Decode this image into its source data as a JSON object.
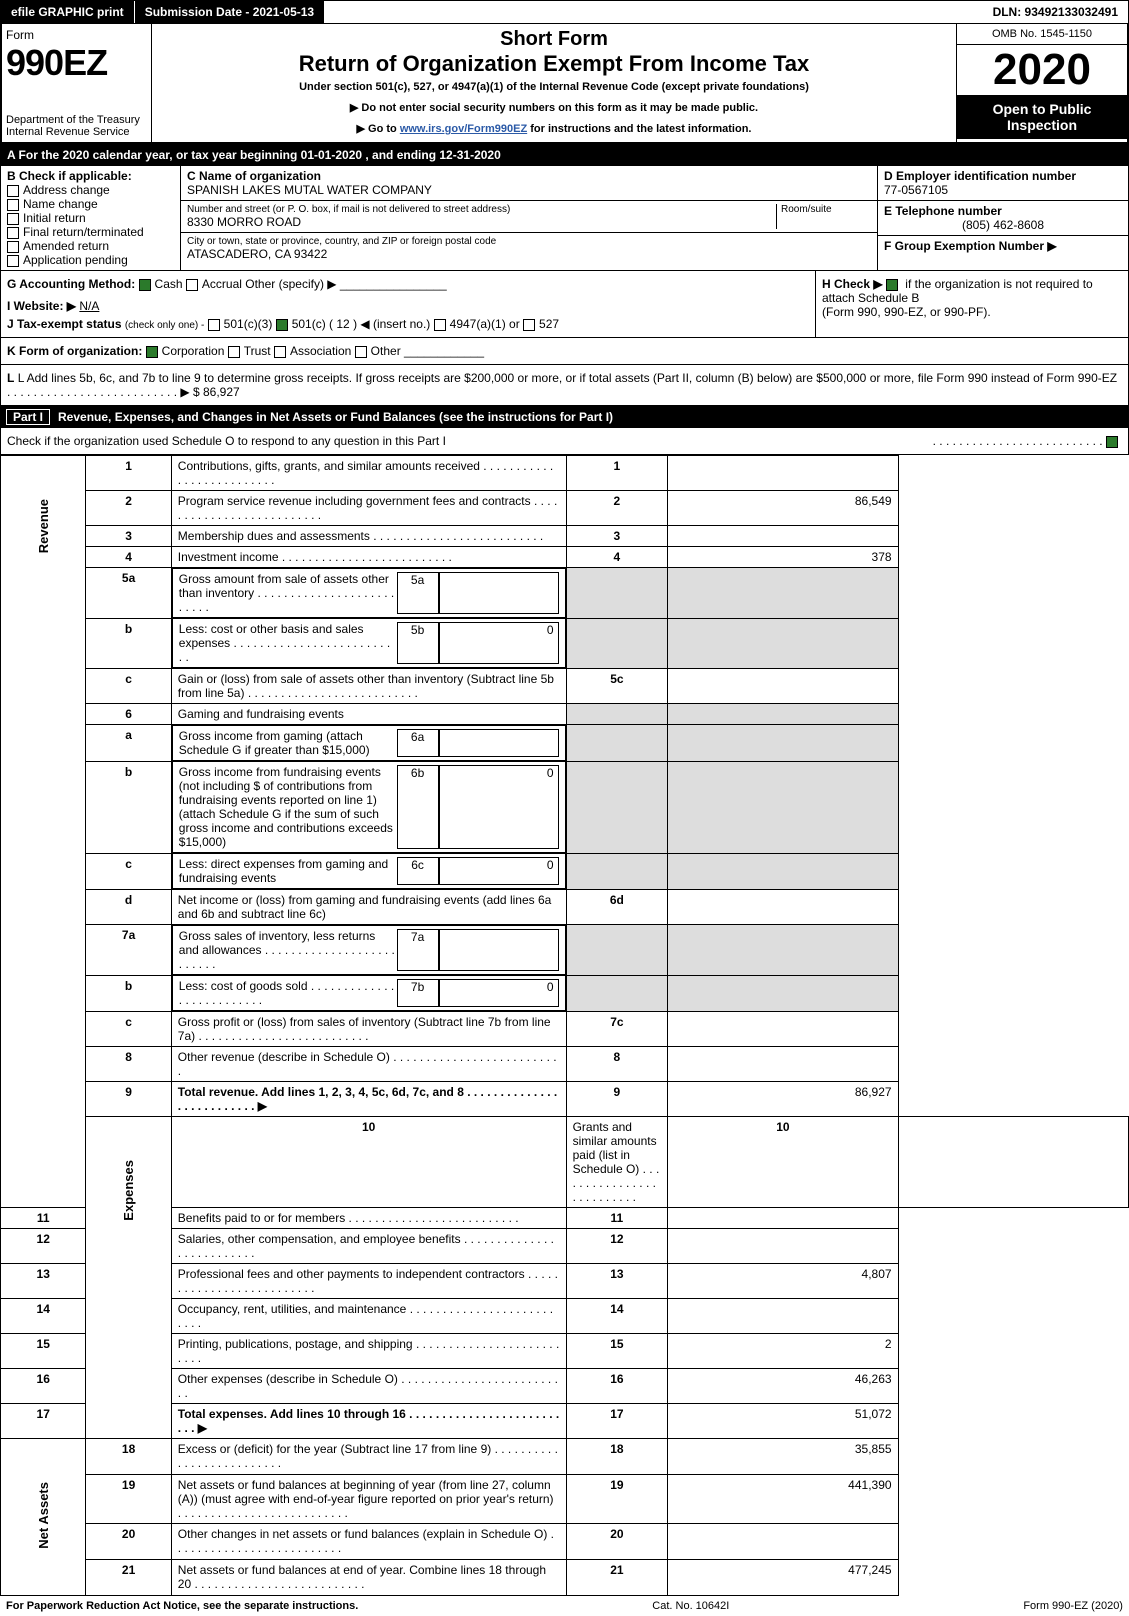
{
  "top": {
    "efile": "efile GRAPHIC print",
    "sub_label": "Submission Date - 2021-05-13",
    "dln": "DLN: 93492133032491"
  },
  "header": {
    "form_word": "Form",
    "form_num": "990EZ",
    "dept": "Department of the Treasury",
    "irs": "Internal Revenue Service",
    "short": "Short Form",
    "title": "Return of Organization Exempt From Income Tax",
    "sub": "Under section 501(c), 527, or 4947(a)(1) of the Internal Revenue Code (except private foundations)",
    "note1": "▶ Do not enter social security numbers on this form as it may be made public.",
    "note2_pre": "▶ Go to ",
    "note2_link": "www.irs.gov/Form990EZ",
    "note2_post": " for instructions and the latest information.",
    "omb": "OMB No. 1545-1150",
    "year": "2020",
    "open": "Open to Public",
    "insp": "Inspection"
  },
  "a_line": "A For the 2020 calendar year, or tax year beginning 01-01-2020 , and ending 12-31-2020",
  "b": {
    "title": "B Check if applicable:",
    "items": [
      "Address change",
      "Name change",
      "Initial return",
      "Final return/terminated",
      "Amended return",
      "Application pending"
    ]
  },
  "c": {
    "label": "C Name of organization",
    "name": "SPANISH LAKES MUTAL WATER COMPANY",
    "street_label": "Number and street (or P. O. box, if mail is not delivered to street address)",
    "room_label": "Room/suite",
    "street": "8330 MORRO ROAD",
    "city_label": "City or town, state or province, country, and ZIP or foreign postal code",
    "city": "ATASCADERO, CA  93422"
  },
  "d": {
    "label": "D Employer identification number",
    "val": "77-0567105"
  },
  "e": {
    "label": "E Telephone number",
    "val": "(805) 462-8608"
  },
  "f": {
    "label": "F Group Exemption Number  ▶",
    "val": ""
  },
  "g": {
    "label": "G Accounting Method:",
    "cash": "Cash",
    "accrual": "Accrual",
    "other": "Other (specify) ▶"
  },
  "h": {
    "pre": "H  Check ▶",
    "post": " if the organization is not required to attach Schedule B",
    "sub": "(Form 990, 990-EZ, or 990-PF)."
  },
  "i": {
    "label": "I Website: ▶",
    "val": "N/A"
  },
  "j": {
    "label": "J Tax-exempt status",
    "sub": "(check only one) -",
    "o1": "501(c)(3)",
    "o2": "501(c) ( 12 ) ◀ (insert no.)",
    "o3": "4947(a)(1) or",
    "o4": "527"
  },
  "k": {
    "label": "K Form of organization:",
    "o1": "Corporation",
    "o2": "Trust",
    "o3": "Association",
    "o4": "Other"
  },
  "l": {
    "text": "L Add lines 5b, 6c, and 7b to line 9 to determine gross receipts. If gross receipts are $200,000 or more, or if total assets (Part II, column (B) below) are $500,000 or more, file Form 990 instead of Form 990-EZ",
    "arrow": "▶ $",
    "val": "86,927"
  },
  "part1": {
    "title": "Revenue, Expenses, and Changes in Net Assets or Fund Balances (see the instructions for Part I)",
    "check_line": "Check if the organization used Schedule O to respond to any question in this Part I"
  },
  "sides": {
    "rev": "Revenue",
    "exp": "Expenses",
    "net": "Net Assets"
  },
  "rows": {
    "1": {
      "n": "1",
      "t": "Contributions, gifts, grants, and similar amounts received",
      "r": "1",
      "v": ""
    },
    "2": {
      "n": "2",
      "t": "Program service revenue including government fees and contracts",
      "r": "2",
      "v": "86,549"
    },
    "3": {
      "n": "3",
      "t": "Membership dues and assessments",
      "r": "3",
      "v": ""
    },
    "4": {
      "n": "4",
      "t": "Investment income",
      "r": "4",
      "v": "378"
    },
    "5a": {
      "n": "5a",
      "t": "Gross amount from sale of assets other than inventory",
      "sn": "5a",
      "sv": ""
    },
    "5b": {
      "n": "b",
      "t": "Less: cost or other basis and sales expenses",
      "sn": "5b",
      "sv": "0"
    },
    "5c": {
      "n": "c",
      "t": "Gain or (loss) from sale of assets other than inventory (Subtract line 5b from line 5a)",
      "r": "5c",
      "v": ""
    },
    "6": {
      "n": "6",
      "t": "Gaming and fundraising events"
    },
    "6a": {
      "n": "a",
      "t": "Gross income from gaming (attach Schedule G if greater than $15,000)",
      "sn": "6a",
      "sv": ""
    },
    "6b": {
      "n": "b",
      "t": "Gross income from fundraising events (not including $               of contributions from fundraising events reported on line 1) (attach Schedule G if the sum of such gross income and contributions exceeds $15,000)",
      "sn": "6b",
      "sv": "0"
    },
    "6c": {
      "n": "c",
      "t": "Less: direct expenses from gaming and fundraising events",
      "sn": "6c",
      "sv": "0"
    },
    "6d": {
      "n": "d",
      "t": "Net income or (loss) from gaming and fundraising events (add lines 6a and 6b and subtract line 6c)",
      "r": "6d",
      "v": ""
    },
    "7a": {
      "n": "7a",
      "t": "Gross sales of inventory, less returns and allowances",
      "sn": "7a",
      "sv": ""
    },
    "7b": {
      "n": "b",
      "t": "Less: cost of goods sold",
      "sn": "7b",
      "sv": "0"
    },
    "7c": {
      "n": "c",
      "t": "Gross profit or (loss) from sales of inventory (Subtract line 7b from line 7a)",
      "r": "7c",
      "v": ""
    },
    "8": {
      "n": "8",
      "t": "Other revenue (describe in Schedule O)",
      "r": "8",
      "v": ""
    },
    "9": {
      "n": "9",
      "t": "Total revenue. Add lines 1, 2, 3, 4, 5c, 6d, 7c, and 8",
      "r": "9",
      "v": "86,927",
      "b": true
    },
    "10": {
      "n": "10",
      "t": "Grants and similar amounts paid (list in Schedule O)",
      "r": "10",
      "v": ""
    },
    "11": {
      "n": "11",
      "t": "Benefits paid to or for members",
      "r": "11",
      "v": ""
    },
    "12": {
      "n": "12",
      "t": "Salaries, other compensation, and employee benefits",
      "r": "12",
      "v": ""
    },
    "13": {
      "n": "13",
      "t": "Professional fees and other payments to independent contractors",
      "r": "13",
      "v": "4,807"
    },
    "14": {
      "n": "14",
      "t": "Occupancy, rent, utilities, and maintenance",
      "r": "14",
      "v": ""
    },
    "15": {
      "n": "15",
      "t": "Printing, publications, postage, and shipping",
      "r": "15",
      "v": "2"
    },
    "16": {
      "n": "16",
      "t": "Other expenses (describe in Schedule O)",
      "r": "16",
      "v": "46,263"
    },
    "17": {
      "n": "17",
      "t": "Total expenses. Add lines 10 through 16",
      "r": "17",
      "v": "51,072",
      "b": true
    },
    "18": {
      "n": "18",
      "t": "Excess or (deficit) for the year (Subtract line 17 from line 9)",
      "r": "18",
      "v": "35,855"
    },
    "19": {
      "n": "19",
      "t": "Net assets or fund balances at beginning of year (from line 27, column (A)) (must agree with end-of-year figure reported on prior year's return)",
      "r": "19",
      "v": "441,390"
    },
    "20": {
      "n": "20",
      "t": "Other changes in net assets or fund balances (explain in Schedule O)",
      "r": "20",
      "v": ""
    },
    "21": {
      "n": "21",
      "t": "Net assets or fund balances at end of year. Combine lines 18 through 20",
      "r": "21",
      "v": "477,245"
    }
  },
  "footer": {
    "left": "For Paperwork Reduction Act Notice, see the separate instructions.",
    "mid": "Cat. No. 10642I",
    "right": "Form 990-EZ (2020)"
  }
}
